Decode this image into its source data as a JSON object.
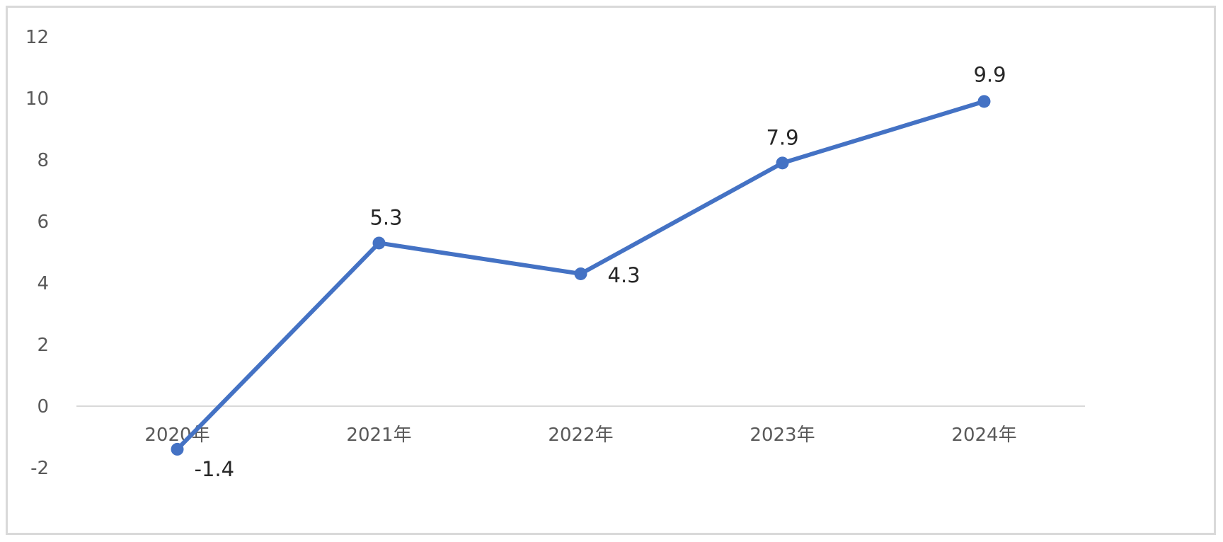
{
  "chart_data": {
    "type": "line",
    "categories": [
      "2020年",
      "2021年",
      "2022年",
      "2023年",
      "2024年"
    ],
    "series": [
      {
        "values": [
          -1.4,
          5.3,
          4.3,
          7.9,
          9.9
        ],
        "color": "#4472c4"
      }
    ],
    "data_labels": [
      "-1.4",
      "5.3",
      "4.3",
      "7.9",
      "9.9"
    ],
    "ylim": [
      -2,
      12
    ],
    "yticks": [
      "-2",
      "0",
      "2",
      "4",
      "6",
      "8",
      "10",
      "12"
    ],
    "grid": false,
    "legend": "none",
    "axis_color": "#d9d9d9",
    "tick_color": "#595959",
    "label_color": "#262626"
  }
}
